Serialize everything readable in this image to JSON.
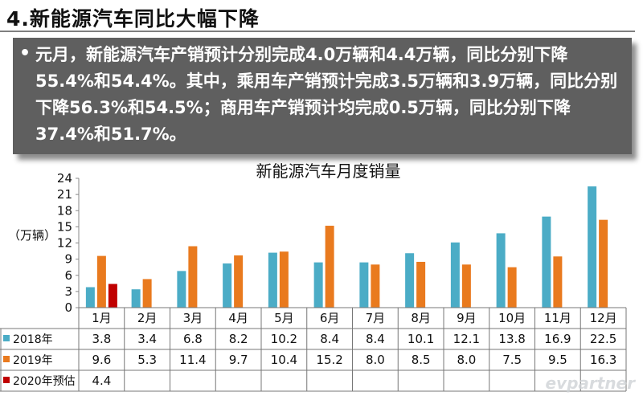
{
  "slide": {
    "title": "4.新能源汽车同比大幅下降",
    "bullet": "元月，新能源汽车产销预计分别完成4.0万辆和4.4万辆，同比分别下降55.4%和54.4%。其中，乘用车产销预计完成3.5万辆和3.9万辆，同比分别下降56.3%和54.5%；商用车产销预计均完成0.5万辆，同比分别下降37.4%和51.7%。",
    "watermark": "evpartner"
  },
  "chart_data": {
    "type": "bar",
    "title": "新能源汽车月度销量",
    "ylabel": "（万辆）",
    "ylim": [
      0,
      24
    ],
    "yticks": [
      0,
      3,
      6,
      9,
      12,
      15,
      18,
      21,
      24
    ],
    "categories": [
      "1月",
      "2月",
      "3月",
      "4月",
      "5月",
      "6月",
      "7月",
      "8月",
      "9月",
      "10月",
      "11月",
      "12月"
    ],
    "series": [
      {
        "name": "2018年",
        "color": "#4bacc6",
        "values": [
          3.8,
          3.4,
          6.8,
          8.2,
          10.2,
          8.4,
          8.4,
          10.1,
          12.1,
          13.8,
          16.9,
          22.5
        ]
      },
      {
        "name": "2019年",
        "color": "#e97a1e",
        "values": [
          9.6,
          5.3,
          11.4,
          9.7,
          10.4,
          15.2,
          8.0,
          8.5,
          8.0,
          7.5,
          9.5,
          16.3
        ]
      },
      {
        "name": "2020年预估",
        "color": "#c00000",
        "values": [
          4.4,
          null,
          null,
          null,
          null,
          null,
          null,
          null,
          null,
          null,
          null,
          null
        ]
      }
    ],
    "table": [
      [
        "3.8",
        "3.4",
        "6.8",
        "8.2",
        "10.2",
        "8.4",
        "8.4",
        "10.1",
        "12.1",
        "13.8",
        "16.9",
        "22.5"
      ],
      [
        "9.6",
        "5.3",
        "11.4",
        "9.7",
        "10.4",
        "15.2",
        "8.0",
        "8.5",
        "8.0",
        "7.5",
        "9.5",
        "16.3"
      ],
      [
        "4.4",
        "",
        "",
        "",
        "",
        "",
        "",
        "",
        "",
        "",
        "",
        ""
      ]
    ]
  }
}
